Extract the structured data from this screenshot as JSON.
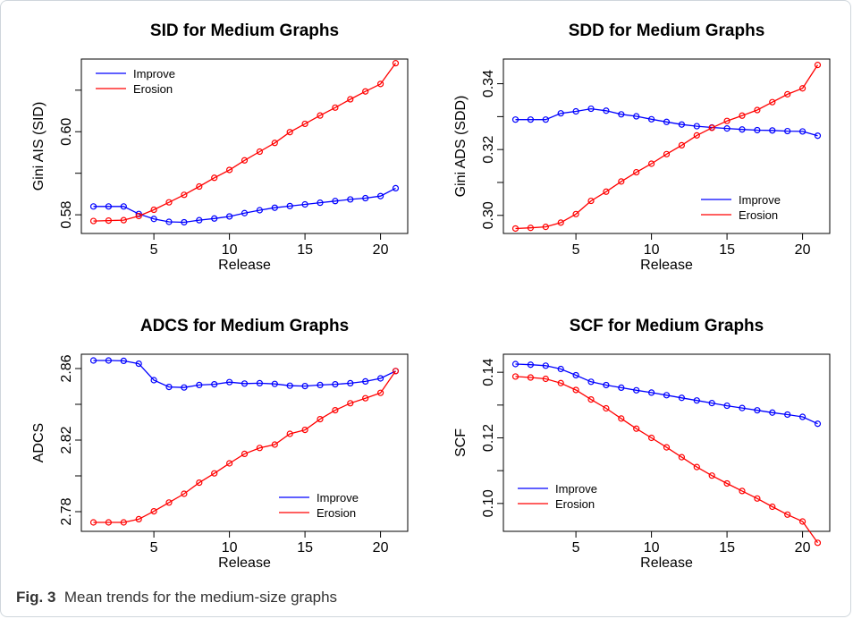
{
  "figure": {
    "caption_label": "Fig. 3",
    "caption_text": "Mean trends for the medium-size graphs"
  },
  "colors": {
    "improve": "#0000ff",
    "erosion": "#ff0000",
    "axis": "#000000"
  },
  "chart_data": [
    {
      "type": "line",
      "title": "SID for Medium Graphs",
      "xlabel": "Release",
      "ylabel": "Gini AIS (SID)",
      "xlim": [
        0.2,
        21.8
      ],
      "ylim": [
        0.5755,
        0.6175
      ],
      "xticks": [
        5,
        10,
        15,
        20
      ],
      "yticks": [
        0.58,
        0.6
      ],
      "yminor": [
        0.59,
        0.61
      ],
      "ytick_labels": [
        "0.58",
        "0.60"
      ],
      "legend_position": "top-left",
      "x": [
        1,
        2,
        3,
        4,
        5,
        6,
        7,
        8,
        9,
        10,
        11,
        12,
        13,
        14,
        15,
        16,
        17,
        18,
        19,
        20,
        21
      ],
      "series": [
        {
          "name": "Improve",
          "color": "#0000ff",
          "values": [
            0.582,
            0.582,
            0.582,
            0.5802,
            0.579,
            0.5783,
            0.5782,
            0.5787,
            0.5791,
            0.5796,
            0.5804,
            0.5811,
            0.5817,
            0.5821,
            0.5825,
            0.5829,
            0.5833,
            0.5837,
            0.584,
            0.5845,
            0.5864
          ]
        },
        {
          "name": "Erosion",
          "color": "#ff0000",
          "values": [
            0.5785,
            0.5786,
            0.5787,
            0.5797,
            0.5812,
            0.583,
            0.5848,
            0.5868,
            0.5889,
            0.5908,
            0.5931,
            0.5952,
            0.5973,
            0.5999,
            0.6019,
            0.6039,
            0.6058,
            0.6078,
            0.6097,
            0.6115,
            0.6165
          ]
        }
      ]
    },
    {
      "type": "line",
      "title": "SDD for Medium Graphs",
      "xlabel": "Release",
      "ylabel": "Gini ADS (SDD)",
      "xlim": [
        0.2,
        21.8
      ],
      "ylim": [
        0.2945,
        0.3475
      ],
      "xticks": [
        5,
        10,
        15,
        20
      ],
      "yticks": [
        0.3,
        0.32,
        0.34
      ],
      "yminor": [
        0.31,
        0.33
      ],
      "ytick_labels": [
        "0.30",
        "0.32",
        "0.34"
      ],
      "legend_position": "bottom-right",
      "x": [
        1,
        2,
        3,
        4,
        5,
        6,
        7,
        8,
        9,
        10,
        11,
        12,
        13,
        14,
        15,
        16,
        17,
        18,
        19,
        20,
        21
      ],
      "series": [
        {
          "name": "Improve",
          "color": "#0000ff",
          "values": [
            0.3291,
            0.3291,
            0.3291,
            0.331,
            0.3316,
            0.3324,
            0.3318,
            0.3307,
            0.3301,
            0.3292,
            0.3284,
            0.3276,
            0.3271,
            0.3267,
            0.3264,
            0.3261,
            0.3259,
            0.3258,
            0.3256,
            0.3255,
            0.3242
          ]
        },
        {
          "name": "Erosion",
          "color": "#ff0000",
          "values": [
            0.296,
            0.2962,
            0.2965,
            0.2978,
            0.3004,
            0.3044,
            0.3072,
            0.3103,
            0.3131,
            0.3157,
            0.3186,
            0.3213,
            0.3243,
            0.3266,
            0.3287,
            0.3303,
            0.332,
            0.3344,
            0.3368,
            0.3386,
            0.3457
          ]
        }
      ]
    },
    {
      "type": "line",
      "title": "ADCS for Medium Graphs",
      "xlabel": "Release",
      "ylabel": "ADCS",
      "xlim": [
        0.2,
        21.8
      ],
      "ylim": [
        2.769,
        2.868
      ],
      "xticks": [
        5,
        10,
        15,
        20
      ],
      "yticks": [
        2.78,
        2.82,
        2.86
      ],
      "yminor": [
        2.8,
        2.84
      ],
      "ytick_labels": [
        "2.78",
        "2.82",
        "2.86"
      ],
      "legend_position": "bottom-right",
      "x": [
        1,
        2,
        3,
        4,
        5,
        6,
        7,
        8,
        9,
        10,
        11,
        12,
        13,
        14,
        15,
        16,
        17,
        18,
        19,
        20,
        21
      ],
      "series": [
        {
          "name": "Improve",
          "color": "#0000ff",
          "values": [
            2.8645,
            2.8645,
            2.8643,
            2.8627,
            2.8535,
            2.8497,
            2.8494,
            2.8508,
            2.8512,
            2.8524,
            2.8516,
            2.8518,
            2.8514,
            2.8504,
            2.8502,
            2.8508,
            2.8512,
            2.8518,
            2.8528,
            2.8545,
            2.8586
          ]
        },
        {
          "name": "Erosion",
          "color": "#ff0000",
          "values": [
            2.774,
            2.774,
            2.774,
            2.7758,
            2.7802,
            2.7851,
            2.79,
            2.7962,
            2.8014,
            2.807,
            2.8123,
            2.8156,
            2.8175,
            2.8235,
            2.8257,
            2.8317,
            2.8367,
            2.8406,
            2.8434,
            2.8464,
            2.8586
          ]
        }
      ]
    },
    {
      "type": "line",
      "title": "SCF for Medium Graphs",
      "xlabel": "Release",
      "ylabel": "SCF",
      "xlim": [
        0.2,
        21.8
      ],
      "ylim": [
        0.0915,
        0.1455
      ],
      "xticks": [
        5,
        10,
        15,
        20
      ],
      "yticks": [
        0.1,
        0.12,
        0.14
      ],
      "yminor": [
        0.11,
        0.13
      ],
      "ytick_labels": [
        "0.10",
        "0.12",
        "0.14"
      ],
      "legend_position": "bottom-left",
      "x": [
        1,
        2,
        3,
        4,
        5,
        6,
        7,
        8,
        9,
        10,
        11,
        12,
        13,
        14,
        15,
        16,
        17,
        18,
        19,
        20,
        21
      ],
      "series": [
        {
          "name": "Improve",
          "color": "#0000ff",
          "values": [
            0.1425,
            0.1423,
            0.142,
            0.141,
            0.1391,
            0.1371,
            0.1361,
            0.1353,
            0.1345,
            0.1338,
            0.133,
            0.1322,
            0.1314,
            0.1306,
            0.1298,
            0.1291,
            0.1284,
            0.1277,
            0.1271,
            0.1264,
            0.1243
          ]
        },
        {
          "name": "Erosion",
          "color": "#ff0000",
          "values": [
            0.1387,
            0.1384,
            0.138,
            0.1367,
            0.1346,
            0.1317,
            0.129,
            0.1259,
            0.1228,
            0.12,
            0.1171,
            0.1141,
            0.1111,
            0.1085,
            0.1061,
            0.1038,
            0.1015,
            0.099,
            0.0966,
            0.0945,
            0.088
          ]
        }
      ]
    }
  ]
}
